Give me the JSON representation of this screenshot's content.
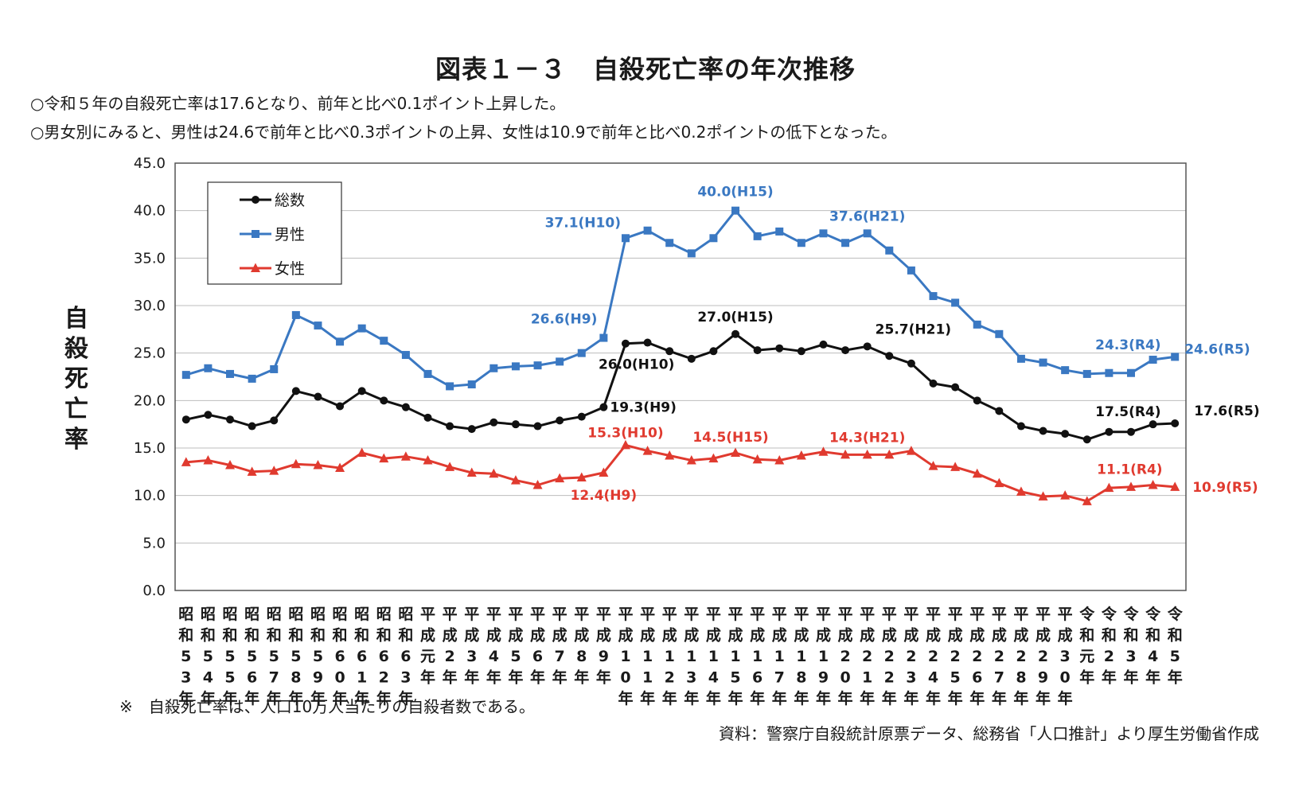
{
  "page": {
    "title": "図表１－３　自殺死亡率の年次推移",
    "summary_lines": [
      "○令和５年の自殺死亡率は17.6となり、前年と比べ0.1ポイント上昇した。",
      "○男女別にみると、男性は24.6で前年と比べ0.3ポイントの上昇、女性は10.9で前年と比べ0.2ポイントの低下となった。"
    ],
    "ylabel_chars": [
      "自",
      "殺",
      "死",
      "亡",
      "率"
    ],
    "note": "※　自殺死亡率は、人口10万人当たりの自殺者数である。",
    "source": "資料：警察庁自殺統計原票データ、総務省「人口推計」より厚生労働省作成"
  },
  "colors": {
    "total": "#111111",
    "male": "#3a78c2",
    "female": "#e03a2f",
    "grid": "#bdbdbd",
    "axis": "#555555"
  },
  "chart_data": {
    "type": "line",
    "ylabel": "自殺死亡率",
    "ylim": [
      0,
      45
    ],
    "yticks": [
      "0.0",
      "5.0",
      "10.0",
      "15.0",
      "20.0",
      "25.0",
      "30.0",
      "35.0",
      "40.0",
      "45.0"
    ],
    "grid": true,
    "legend_position": "top-left",
    "categories": [
      [
        "昭",
        "和",
        "5",
        "3",
        "年"
      ],
      [
        "昭",
        "和",
        "5",
        "4",
        "年"
      ],
      [
        "昭",
        "和",
        "5",
        "5",
        "年"
      ],
      [
        "昭",
        "和",
        "5",
        "6",
        "年"
      ],
      [
        "昭",
        "和",
        "5",
        "7",
        "年"
      ],
      [
        "昭",
        "和",
        "5",
        "8",
        "年"
      ],
      [
        "昭",
        "和",
        "5",
        "9",
        "年"
      ],
      [
        "昭",
        "和",
        "6",
        "0",
        "年"
      ],
      [
        "昭",
        "和",
        "6",
        "1",
        "年"
      ],
      [
        "昭",
        "和",
        "6",
        "2",
        "年"
      ],
      [
        "昭",
        "和",
        "6",
        "3",
        "年"
      ],
      [
        "平",
        "成",
        "元",
        "年"
      ],
      [
        "平",
        "成",
        "2",
        "年"
      ],
      [
        "平",
        "成",
        "3",
        "年"
      ],
      [
        "平",
        "成",
        "4",
        "年"
      ],
      [
        "平",
        "成",
        "5",
        "年"
      ],
      [
        "平",
        "成",
        "6",
        "年"
      ],
      [
        "平",
        "成",
        "7",
        "年"
      ],
      [
        "平",
        "成",
        "8",
        "年"
      ],
      [
        "平",
        "成",
        "9",
        "年"
      ],
      [
        "平",
        "成",
        "1",
        "0",
        "年"
      ],
      [
        "平",
        "成",
        "1",
        "1",
        "年"
      ],
      [
        "平",
        "成",
        "1",
        "2",
        "年"
      ],
      [
        "平",
        "成",
        "1",
        "3",
        "年"
      ],
      [
        "平",
        "成",
        "1",
        "4",
        "年"
      ],
      [
        "平",
        "成",
        "1",
        "5",
        "年"
      ],
      [
        "平",
        "成",
        "1",
        "6",
        "年"
      ],
      [
        "平",
        "成",
        "1",
        "7",
        "年"
      ],
      [
        "平",
        "成",
        "1",
        "8",
        "年"
      ],
      [
        "平",
        "成",
        "1",
        "9",
        "年"
      ],
      [
        "平",
        "成",
        "2",
        "0",
        "年"
      ],
      [
        "平",
        "成",
        "2",
        "1",
        "年"
      ],
      [
        "平",
        "成",
        "2",
        "2",
        "年"
      ],
      [
        "平",
        "成",
        "2",
        "3",
        "年"
      ],
      [
        "平",
        "成",
        "2",
        "4",
        "年"
      ],
      [
        "平",
        "成",
        "2",
        "5",
        "年"
      ],
      [
        "平",
        "成",
        "2",
        "6",
        "年"
      ],
      [
        "平",
        "成",
        "2",
        "7",
        "年"
      ],
      [
        "平",
        "成",
        "2",
        "8",
        "年"
      ],
      [
        "平",
        "成",
        "2",
        "9",
        "年"
      ],
      [
        "平",
        "成",
        "3",
        "0",
        "年"
      ],
      [
        "令",
        "和",
        "元",
        "年"
      ],
      [
        "令",
        "和",
        "2",
        "年"
      ],
      [
        "令",
        "和",
        "3",
        "年"
      ],
      [
        "令",
        "和",
        "4",
        "年"
      ],
      [
        "令",
        "和",
        "5",
        "年"
      ]
    ],
    "series": [
      {
        "name": "総数",
        "key": "total",
        "marker": "circle",
        "values": [
          18.0,
          18.5,
          18.0,
          17.3,
          17.9,
          21.0,
          20.4,
          19.4,
          21.0,
          20.0,
          19.3,
          18.2,
          17.3,
          17.0,
          17.7,
          17.5,
          17.3,
          17.9,
          18.3,
          19.3,
          26.0,
          26.1,
          25.2,
          24.4,
          25.2,
          27.0,
          25.3,
          25.5,
          25.2,
          25.9,
          25.3,
          25.7,
          24.7,
          23.9,
          21.8,
          21.4,
          20.0,
          18.9,
          17.3,
          16.8,
          16.5,
          15.9,
          16.7,
          16.7,
          17.5,
          17.6
        ]
      },
      {
        "name": "男性",
        "key": "male",
        "marker": "square",
        "values": [
          22.7,
          23.4,
          22.8,
          22.3,
          23.3,
          29.0,
          27.9,
          26.2,
          27.6,
          26.3,
          24.8,
          22.8,
          21.5,
          21.7,
          23.4,
          23.6,
          23.7,
          24.1,
          25.0,
          26.6,
          37.1,
          37.9,
          36.6,
          35.5,
          37.1,
          40.0,
          37.3,
          37.8,
          36.6,
          37.6,
          36.6,
          37.6,
          35.8,
          33.7,
          31.0,
          30.3,
          28.0,
          27.0,
          24.4,
          24.0,
          23.2,
          22.8,
          22.9,
          22.9,
          24.3,
          24.6
        ]
      },
      {
        "name": "女性",
        "key": "female",
        "marker": "triangle",
        "values": [
          13.5,
          13.7,
          13.2,
          12.5,
          12.6,
          13.3,
          13.2,
          12.9,
          14.5,
          13.9,
          14.1,
          13.7,
          13.0,
          12.4,
          12.3,
          11.6,
          11.1,
          11.8,
          11.9,
          12.4,
          15.3,
          14.7,
          14.2,
          13.7,
          13.9,
          14.5,
          13.8,
          13.7,
          14.2,
          14.6,
          14.3,
          14.3,
          14.3,
          14.7,
          13.1,
          13.0,
          12.3,
          11.3,
          10.4,
          9.9,
          10.0,
          9.4,
          10.8,
          10.9,
          11.1,
          10.9
        ]
      }
    ],
    "annotations": [
      {
        "series": "male",
        "index": 19,
        "text": "26.6(H9)"
      },
      {
        "series": "male",
        "index": 20,
        "text": "37.1(H10)"
      },
      {
        "series": "male",
        "index": 25,
        "text": "40.0(H15)"
      },
      {
        "series": "male",
        "index": 31,
        "text": "37.6(H21)"
      },
      {
        "series": "male",
        "index": 44,
        "text": "24.3(R4)"
      },
      {
        "series": "male",
        "index": 45,
        "text": "24.6(R5)"
      },
      {
        "series": "total",
        "index": 19,
        "text": "19.3(H9)"
      },
      {
        "series": "total",
        "index": 20,
        "text": "26.0(H10)"
      },
      {
        "series": "total",
        "index": 25,
        "text": "27.0(H15)"
      },
      {
        "series": "total",
        "index": 31,
        "text": "25.7(H21)"
      },
      {
        "series": "total",
        "index": 44,
        "text": "17.5(R4)"
      },
      {
        "series": "total",
        "index": 45,
        "text": "17.6(R5)"
      },
      {
        "series": "female",
        "index": 19,
        "text": "12.4(H9)"
      },
      {
        "series": "female",
        "index": 20,
        "text": "15.3(H10)"
      },
      {
        "series": "female",
        "index": 25,
        "text": "14.5(H15)"
      },
      {
        "series": "female",
        "index": 31,
        "text": "14.3(H21)"
      },
      {
        "series": "female",
        "index": 44,
        "text": "11.1(R4)"
      },
      {
        "series": "female",
        "index": 45,
        "text": "10.9(R5)"
      }
    ]
  }
}
